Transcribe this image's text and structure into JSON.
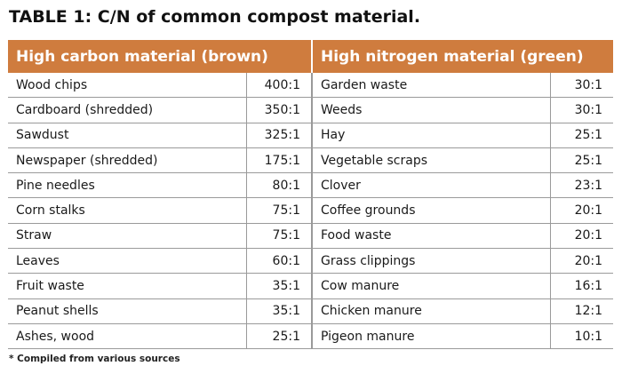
{
  "title": "TABLE 1: C/N of common compost material.",
  "headers": {
    "carbon": "High carbon material (brown)",
    "nitrogen": "High nitrogen material (green)"
  },
  "carbon": [
    {
      "name": "Wood chips",
      "ratio": "400:1"
    },
    {
      "name": "Cardboard (shredded)",
      "ratio": "350:1"
    },
    {
      "name": "Sawdust",
      "ratio": "325:1"
    },
    {
      "name": "Newspaper (shredded)",
      "ratio": "175:1"
    },
    {
      "name": "Pine needles",
      "ratio": "80:1"
    },
    {
      "name": "Corn stalks",
      "ratio": "75:1"
    },
    {
      "name": "Straw",
      "ratio": "75:1"
    },
    {
      "name": "Leaves",
      "ratio": "60:1"
    },
    {
      "name": "Fruit waste",
      "ratio": "35:1"
    },
    {
      "name": "Peanut shells",
      "ratio": "35:1"
    },
    {
      "name": "Ashes, wood",
      "ratio": "25:1"
    }
  ],
  "nitrogen": [
    {
      "name": "Garden waste",
      "ratio": "30:1"
    },
    {
      "name": "Weeds",
      "ratio": "30:1"
    },
    {
      "name": "Hay",
      "ratio": "25:1"
    },
    {
      "name": "Vegetable scraps",
      "ratio": "25:1"
    },
    {
      "name": "Clover",
      "ratio": "23:1"
    },
    {
      "name": "Coffee grounds",
      "ratio": "20:1"
    },
    {
      "name": "Food waste",
      "ratio": "20:1"
    },
    {
      "name": "Grass clippings",
      "ratio": "20:1"
    },
    {
      "name": "Cow manure",
      "ratio": "16:1"
    },
    {
      "name": "Chicken manure",
      "ratio": "12:1"
    },
    {
      "name": "Pigeon manure",
      "ratio": "10:1"
    }
  ],
  "footnote": "* Compiled from various sources",
  "colors": {
    "header_bg": "#cf7c3e",
    "header_text": "#ffffff",
    "rule": "#9a9a9a"
  }
}
